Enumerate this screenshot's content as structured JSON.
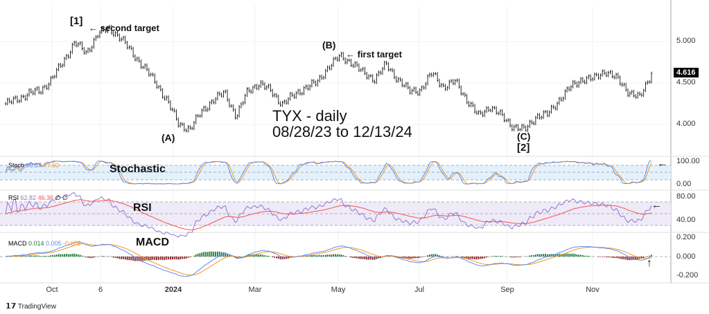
{
  "chart_data": {
    "type": "ohlc-line",
    "title": "TYX - daily",
    "subtitle": "08/28/23 to 12/13/24",
    "start_date": "08/28/23",
    "end_date": "12/13/24",
    "price_axis": {
      "ticks": [
        "5.000",
        "4.500",
        "4.000"
      ],
      "tick_values": [
        5.0,
        4.5,
        4.0
      ],
      "ylim": [
        3.8,
        5.3
      ]
    },
    "last_price": "4.616",
    "x_ticks": [
      "Oct",
      "6",
      "2024",
      "Mar",
      "May",
      "Jul",
      "Sep",
      "Nov"
    ],
    "price_series": [
      4.25,
      4.3,
      4.38,
      4.4,
      4.55,
      4.75,
      5.0,
      4.85,
      5.1,
      5.15,
      5.05,
      4.85,
      4.7,
      4.5,
      4.3,
      4.0,
      3.95,
      4.15,
      4.3,
      4.38,
      4.1,
      4.4,
      4.5,
      4.4,
      4.25,
      4.35,
      4.45,
      4.5,
      4.7,
      4.82,
      4.75,
      4.62,
      4.55,
      4.72,
      4.55,
      4.4,
      4.42,
      4.62,
      4.45,
      4.52,
      4.3,
      4.1,
      4.22,
      4.1,
      3.98,
      3.93,
      4.1,
      4.12,
      4.3,
      4.45,
      4.55,
      4.55,
      4.65,
      4.55,
      4.4,
      4.32,
      4.616
    ],
    "annotations": {
      "w1": "[1]",
      "second_target": "← second target",
      "b": "(B)",
      "first_target": "← first target",
      "a": "(A)",
      "c": "(C)",
      "w2": "[2]"
    },
    "panels": {
      "stoch": {
        "label": "Stochastic",
        "legend": "Stoch",
        "k": "99.37",
        "d": "77.60",
        "ticks": [
          "100.00",
          "0.00"
        ],
        "arrow": "←"
      },
      "rsi": {
        "label": "RSI",
        "legend": "RSI",
        "value": "62.82",
        "ma": "46.36",
        "extra": "∅ ∅",
        "ticks": [
          "80.00",
          "40.00"
        ],
        "arrow": "←"
      },
      "macd": {
        "label": "MACD",
        "legend": "MACD",
        "hist": "0.014",
        "macd": "0.005",
        "signal": "-0.008",
        "ticks": [
          "0.200",
          "0.000",
          "-0.200"
        ],
        "arrow": "↑"
      }
    }
  },
  "brand": "TradingView",
  "colors": {
    "blue": "#5b8def",
    "orange": "#f7931e",
    "rsi": "#9575cd",
    "rsima": "#ef5350",
    "green": "#1b7a3a",
    "red": "#8b1a1a"
  }
}
